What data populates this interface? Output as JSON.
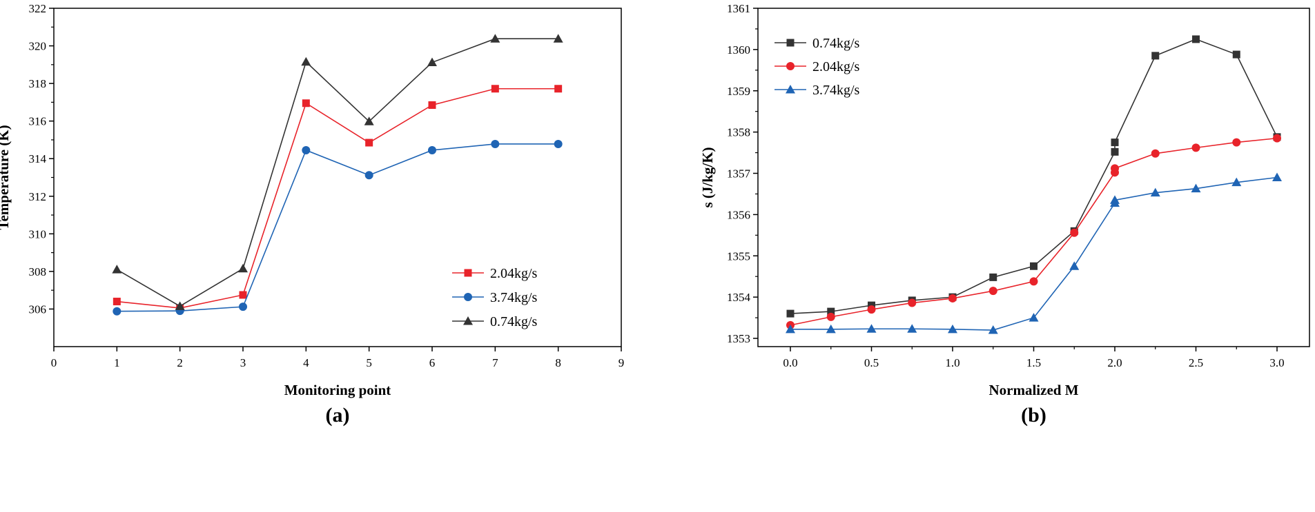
{
  "chart_data": [
    {
      "panel_label": "(a)",
      "type": "line",
      "xlabel": "Monitoring point",
      "ylabel": "Temperature (K)",
      "xlim": [
        0,
        9
      ],
      "ylim": [
        304,
        322
      ],
      "xticks": [
        0,
        1,
        2,
        3,
        4,
        5,
        6,
        7,
        8,
        9
      ],
      "yticks": [
        306,
        308,
        310,
        312,
        314,
        316,
        318,
        320,
        322
      ],
      "x": [
        1,
        2,
        3,
        4,
        5,
        6,
        7,
        8
      ],
      "grid": false,
      "legend_position": "center-right",
      "series": [
        {
          "name": "2.04kg/s",
          "color": "#e8232a",
          "marker": "square",
          "values": [
            306.4,
            306.05,
            306.75,
            316.95,
            314.85,
            316.85,
            317.72,
            317.72
          ]
        },
        {
          "name": "3.74kg/s",
          "color": "#1f64b4",
          "marker": "circle",
          "values": [
            305.88,
            305.9,
            306.12,
            314.45,
            313.12,
            314.45,
            314.78,
            314.78
          ]
        },
        {
          "name": "0.74kg/s",
          "color": "#333333",
          "marker": "triangle",
          "values": [
            308.1,
            306.15,
            308.15,
            319.15,
            315.98,
            319.12,
            320.38,
            320.38
          ]
        }
      ]
    },
    {
      "panel_label": "(b)",
      "type": "line",
      "xlabel": "Normalized M",
      "ylabel": "s (J/kg/K)",
      "xlim": [
        -0.2,
        3.2
      ],
      "ylim": [
        1352.8,
        1361
      ],
      "xticks": [
        "0.0",
        "0.5",
        "1.0",
        "1.5",
        "2.0",
        "2.5",
        "3.0"
      ],
      "yticks": [
        1353,
        1354,
        1355,
        1356,
        1357,
        1358,
        1359,
        1360,
        1361
      ],
      "grid": false,
      "legend_position": "top-left",
      "series": [
        {
          "name": "0.74kg/s",
          "color": "#333333",
          "marker": "square",
          "x": [
            0,
            0.25,
            0.5,
            0.75,
            1.0,
            1.25,
            1.5,
            1.75,
            2.0,
            2.0,
            2.25,
            2.5,
            2.75,
            3.0
          ],
          "values": [
            1353.6,
            1353.65,
            1353.8,
            1353.92,
            1354.0,
            1354.48,
            1354.75,
            1355.6,
            1357.52,
            1357.75,
            1359.85,
            1360.25,
            1359.88,
            1357.88
          ]
        },
        {
          "name": "2.04kg/s",
          "color": "#e8232a",
          "marker": "circle",
          "x": [
            0,
            0.25,
            0.5,
            0.75,
            1.0,
            1.25,
            1.5,
            1.75,
            2.0,
            2.0,
            2.25,
            2.5,
            2.75,
            3.0
          ],
          "values": [
            1353.32,
            1353.52,
            1353.7,
            1353.86,
            1353.97,
            1354.15,
            1354.38,
            1355.56,
            1357.02,
            1357.12,
            1357.48,
            1357.62,
            1357.75,
            1357.85
          ]
        },
        {
          "name": "3.74kg/s",
          "color": "#1f64b4",
          "marker": "triangle",
          "x": [
            0,
            0.25,
            0.5,
            0.75,
            1.0,
            1.25,
            1.5,
            1.75,
            2.0,
            2.0,
            2.25,
            2.5,
            2.75,
            3.0
          ],
          "values": [
            1353.22,
            1353.22,
            1353.23,
            1353.23,
            1353.22,
            1353.2,
            1353.5,
            1354.75,
            1356.28,
            1356.35,
            1356.53,
            1356.63,
            1356.78,
            1356.9
          ]
        }
      ]
    }
  ]
}
